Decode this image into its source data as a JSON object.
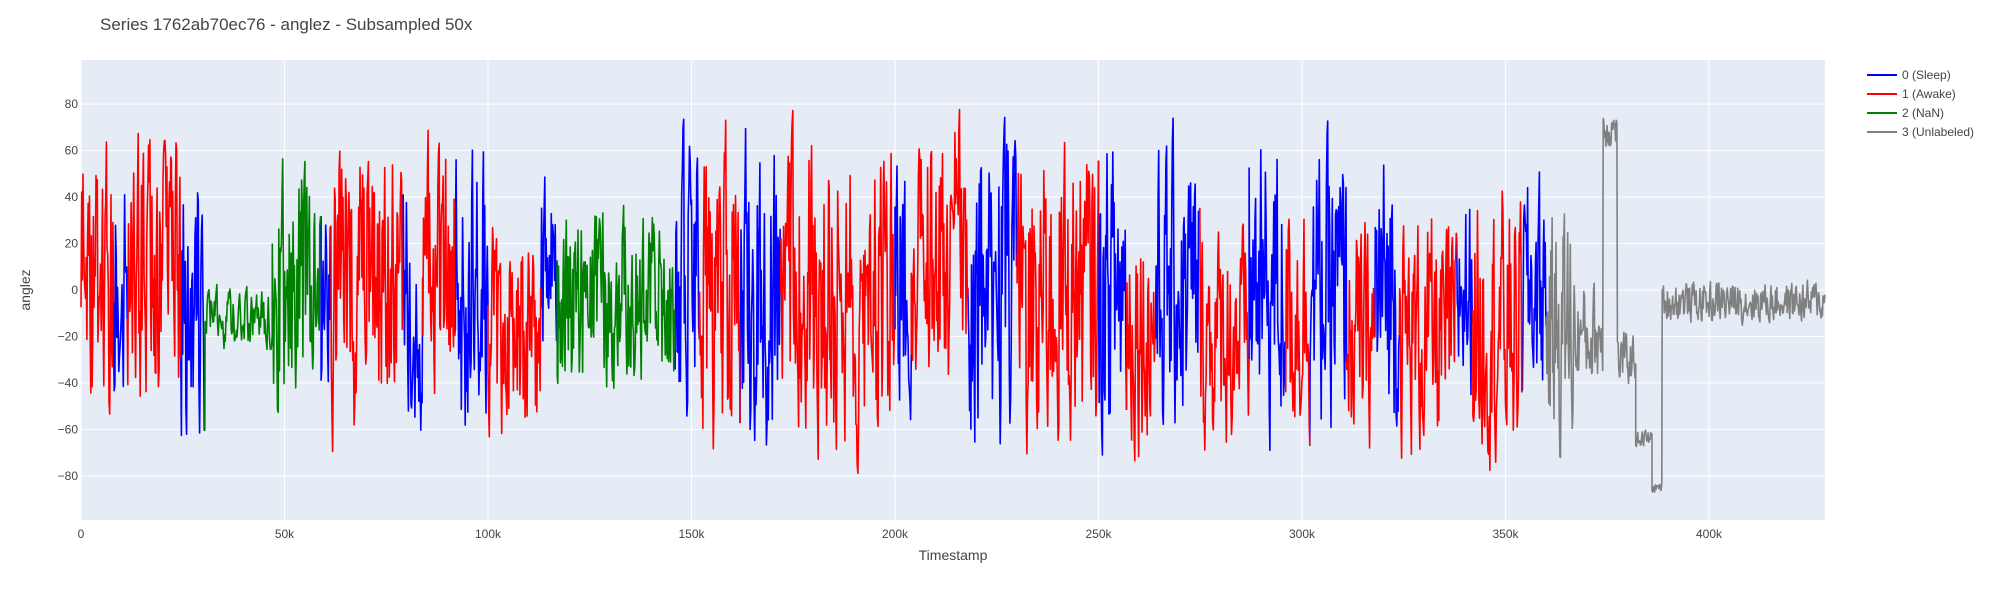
{
  "chart_data": {
    "type": "line",
    "title": "Series 1762ab70ec76 - anglez - Subsampled 50x",
    "xlabel": "Timestamp",
    "ylabel": "anglez",
    "xlim": [
      0,
      428500
    ],
    "ylim": [
      -99,
      99
    ],
    "x_ticks": [
      0,
      50000,
      100000,
      150000,
      200000,
      250000,
      300000,
      350000,
      400000
    ],
    "x_tick_labels": [
      "0",
      "50k",
      "100k",
      "150k",
      "200k",
      "250k",
      "300k",
      "350k",
      "400k"
    ],
    "y_ticks": [
      -80,
      -60,
      -40,
      -20,
      0,
      20,
      40,
      60,
      80
    ],
    "y_tick_labels": [
      "−80",
      "−60",
      "−40",
      "−20",
      "0",
      "20",
      "40",
      "60",
      "80"
    ],
    "grid": true,
    "legend_position": "top-right",
    "series": [
      {
        "name": "0 (Sleep)",
        "color": "#0000ff"
      },
      {
        "name": "1 (Awake)",
        "color": "#ff0000"
      },
      {
        "name": "2 (NaN)",
        "color": "#008000"
      },
      {
        "name": "3 (Unlabeled)",
        "color": "#808080"
      }
    ],
    "segments": [
      {
        "label": 1,
        "start": 0,
        "end": 8000,
        "mean": 0,
        "amp": 80
      },
      {
        "label": 0,
        "start": 8000,
        "end": 11500,
        "mean": 5,
        "amp": 60
      },
      {
        "label": 1,
        "start": 11500,
        "end": 24500,
        "mean": 5,
        "amp": 78
      },
      {
        "label": 0,
        "start": 24500,
        "end": 30500,
        "mean": -5,
        "amp": 80
      },
      {
        "label": 2,
        "start": 30500,
        "end": 47000,
        "mean": -12,
        "amp": 16
      },
      {
        "label": 2,
        "start": 47000,
        "end": 59000,
        "mean": 0,
        "amp": 70
      },
      {
        "label": 0,
        "start": 59000,
        "end": 61500,
        "mean": 0,
        "amp": 60
      },
      {
        "label": 1,
        "start": 61500,
        "end": 79000,
        "mean": 0,
        "amp": 80
      },
      {
        "label": 0,
        "start": 79000,
        "end": 84000,
        "mean": -5,
        "amp": 70
      },
      {
        "label": 1,
        "start": 84000,
        "end": 92000,
        "mean": 10,
        "amp": 70
      },
      {
        "label": 0,
        "start": 92000,
        "end": 100000,
        "mean": 0,
        "amp": 80
      },
      {
        "label": 1,
        "start": 100000,
        "end": 113000,
        "mean": -20,
        "amp": 60
      },
      {
        "label": 0,
        "start": 113000,
        "end": 117000,
        "mean": 0,
        "amp": 60
      },
      {
        "label": 2,
        "start": 117000,
        "end": 146000,
        "mean": -5,
        "amp": 50
      },
      {
        "label": 0,
        "start": 146000,
        "end": 152000,
        "mean": 0,
        "amp": 80
      },
      {
        "label": 1,
        "start": 152000,
        "end": 162000,
        "mean": 0,
        "amp": 85
      },
      {
        "label": 0,
        "start": 162000,
        "end": 172000,
        "mean": 0,
        "amp": 85
      },
      {
        "label": 1,
        "start": 172000,
        "end": 200000,
        "mean": 0,
        "amp": 85
      },
      {
        "label": 0,
        "start": 200000,
        "end": 204000,
        "mean": 0,
        "amp": 82
      },
      {
        "label": 1,
        "start": 204000,
        "end": 218000,
        "mean": 15,
        "amp": 75
      },
      {
        "label": 0,
        "start": 218000,
        "end": 230000,
        "mean": 0,
        "amp": 85
      },
      {
        "label": 1,
        "start": 230000,
        "end": 250000,
        "mean": 0,
        "amp": 85
      },
      {
        "label": 0,
        "start": 250000,
        "end": 257000,
        "mean": 0,
        "amp": 85
      },
      {
        "label": 1,
        "start": 257000,
        "end": 264000,
        "mean": -15,
        "amp": 70
      },
      {
        "label": 0,
        "start": 264000,
        "end": 275000,
        "mean": 0,
        "amp": 80
      },
      {
        "label": 1,
        "start": 275000,
        "end": 287000,
        "mean": -20,
        "amp": 60
      },
      {
        "label": 0,
        "start": 287000,
        "end": 296000,
        "mean": 0,
        "amp": 85
      },
      {
        "label": 1,
        "start": 296000,
        "end": 302000,
        "mean": -10,
        "amp": 70
      },
      {
        "label": 0,
        "start": 302000,
        "end": 311000,
        "mean": 0,
        "amp": 80
      },
      {
        "label": 1,
        "start": 311000,
        "end": 318000,
        "mean": -20,
        "amp": 60
      },
      {
        "label": 0,
        "start": 318000,
        "end": 324000,
        "mean": 0,
        "amp": 80
      },
      {
        "label": 1,
        "start": 324000,
        "end": 338000,
        "mean": -20,
        "amp": 65
      },
      {
        "label": 0,
        "start": 338000,
        "end": 342000,
        "mean": 0,
        "amp": 60
      },
      {
        "label": 1,
        "start": 342000,
        "end": 354000,
        "mean": -15,
        "amp": 75
      },
      {
        "label": 0,
        "start": 354000,
        "end": 360000,
        "mean": 0,
        "amp": 65
      },
      {
        "label": 3,
        "start": 360000,
        "end": 367000,
        "mean": -15,
        "amp": 70
      },
      {
        "label": 3,
        "start": 367000,
        "end": 374000,
        "mean": -20,
        "amp": 30
      },
      {
        "label": 3,
        "start": 374000,
        "end": 377500,
        "mean": 70,
        "amp": 12
      },
      {
        "label": 3,
        "start": 377500,
        "end": 382000,
        "mean": -30,
        "amp": 15
      },
      {
        "label": 3,
        "start": 382000,
        "end": 386000,
        "mean": -64,
        "amp": 5
      },
      {
        "label": 3,
        "start": 386000,
        "end": 388500,
        "mean": -85,
        "amp": 3
      },
      {
        "label": 3,
        "start": 388500,
        "end": 428500,
        "mean": -5,
        "amp": 12
      }
    ]
  }
}
